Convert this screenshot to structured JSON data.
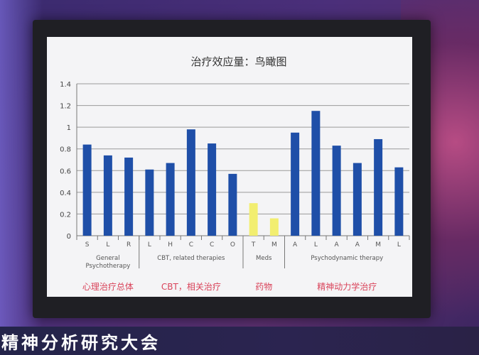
{
  "event": {
    "banner": "精神分析研究大会"
  },
  "chart_data": {
    "type": "bar",
    "title": "治疗效应量：鸟瞰图",
    "ylim": [
      0,
      1.4
    ],
    "yticks": [
      "0",
      "0.2",
      "0.4",
      "0.6",
      "0.8",
      "1",
      "1.2",
      "1.4"
    ],
    "grid": true,
    "categories": [
      "S",
      "L",
      "R",
      "L",
      "H",
      "C",
      "C",
      "O",
      "T",
      "M",
      "A",
      "L",
      "A",
      "A",
      "M",
      "L"
    ],
    "values": [
      0.84,
      0.74,
      0.72,
      0.61,
      0.67,
      0.98,
      0.85,
      0.57,
      0.3,
      0.16,
      0.95,
      1.15,
      0.83,
      0.67,
      0.89,
      0.63
    ],
    "colors": [
      "#1f4fa8",
      "#1f4fa8",
      "#1f4fa8",
      "#1f4fa8",
      "#1f4fa8",
      "#1f4fa8",
      "#1f4fa8",
      "#1f4fa8",
      "#f2ee70",
      "#f2ee70",
      "#1f4fa8",
      "#1f4fa8",
      "#1f4fa8",
      "#1f4fa8",
      "#1f4fa8",
      "#1f4fa8"
    ],
    "groups": [
      {
        "label_lines": [
          "General",
          "Psychotherapy"
        ],
        "caption": "心理治疗总体",
        "start": 0,
        "end": 2
      },
      {
        "label_lines": [
          "CBT, related therapies"
        ],
        "caption": "CBT，相关治疗",
        "start": 3,
        "end": 7
      },
      {
        "label_lines": [
          "Meds"
        ],
        "caption": "药物",
        "start": 8,
        "end": 9
      },
      {
        "label_lines": [
          "Psychodynamic therapy"
        ],
        "caption": "精神动力学治疗",
        "start": 10,
        "end": 15
      }
    ]
  }
}
